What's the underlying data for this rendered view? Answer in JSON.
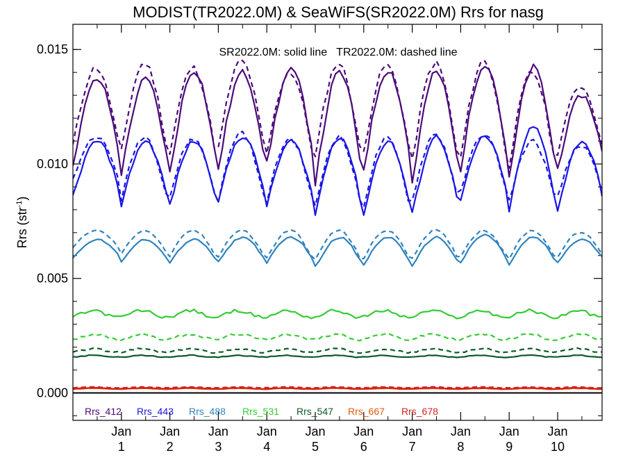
{
  "chart_data": {
    "type": "line",
    "title": "MODIST(TR2022.0M) & SeaWiFS(SR2022.0M)  Rrs for nasg",
    "ylabel": "Rrs (str",
    "ylabel_sup": "-1",
    "ylabel_close": ")",
    "annotation": "SR2022.0M: solid line   TR2022.0M: dashed line",
    "ylim": [
      -0.0012,
      0.0161
    ],
    "xlim": [
      0,
      131
    ],
    "yticks": [
      {
        "value": 0.0,
        "label": "0.000"
      },
      {
        "value": 0.005,
        "label": "0.005"
      },
      {
        "value": 0.01,
        "label": "0.010"
      },
      {
        "value": 0.015,
        "label": "0.015"
      }
    ],
    "xticks": [
      {
        "month": 12,
        "line1": "Jan",
        "line2": "1"
      },
      {
        "month": 24,
        "line1": "Jan",
        "line2": "2"
      },
      {
        "month": 36,
        "line1": "Jan",
        "line2": "3"
      },
      {
        "month": 48,
        "line1": "Jan",
        "line2": "4"
      },
      {
        "month": 60,
        "line1": "Jan",
        "line2": "5"
      },
      {
        "month": 72,
        "line1": "Jan",
        "line2": "6"
      },
      {
        "month": 84,
        "line1": "Jan",
        "line2": "7"
      },
      {
        "month": 96,
        "line1": "Jan",
        "line2": "8"
      },
      {
        "month": 108,
        "line1": "Jan",
        "line2": "9"
      },
      {
        "month": 120,
        "line1": "Jan",
        "line2": "10"
      }
    ],
    "legend_placement": "bottom-left, inside plot",
    "series": [
      {
        "name": "Rrs_412",
        "color": "#4b0a78",
        "solid": {
          "peaks": [
            0.0137,
            0.0137,
            0.0141,
            0.014,
            0.0141,
            0.014,
            0.0141,
            0.014,
            0.0144,
            0.0142,
            0.013
          ],
          "troughs": [
            0.01,
            0.0096,
            0.0096,
            0.0098,
            0.01,
            0.0092,
            0.0098,
            0.0092,
            0.0098,
            0.0093,
            0.0098
          ]
        },
        "dashed": {
          "peaks": [
            0.0142,
            0.0144,
            0.0142,
            0.0145,
            0.014,
            0.0144,
            0.0143,
            0.0144,
            0.0145,
            0.014,
            0.0134
          ],
          "troughs": [
            0.0106,
            0.0103,
            0.0102,
            0.0104,
            0.0102,
            0.01,
            0.0103,
            0.0098,
            0.01,
            0.0097,
            0.0103
          ]
        }
      },
      {
        "name": "Rrs_443",
        "color": "#1a14e6",
        "solid": {
          "peaks": [
            0.011,
            0.011,
            0.011,
            0.0112,
            0.011,
            0.0112,
            0.011,
            0.0112,
            0.0112,
            0.0116,
            0.011
          ],
          "troughs": [
            0.0086,
            0.0082,
            0.0082,
            0.0084,
            0.0082,
            0.0078,
            0.0078,
            0.0078,
            0.0084,
            0.008,
            0.008
          ]
        },
        "dashed": {
          "peaks": [
            0.0112,
            0.0112,
            0.0111,
            0.0114,
            0.0111,
            0.0112,
            0.0111,
            0.0113,
            0.0113,
            0.011,
            0.0108
          ],
          "troughs": [
            0.0092,
            0.0083,
            0.0084,
            0.0082,
            0.0082,
            0.0079,
            0.008,
            0.0082,
            0.0086,
            0.0082,
            0.0084
          ]
        }
      },
      {
        "name": "Rrs_488",
        "color": "#2f83be",
        "solid": {
          "peaks": [
            0.0067,
            0.0067,
            0.0067,
            0.0068,
            0.0068,
            0.0068,
            0.0068,
            0.0068,
            0.0069,
            0.0068,
            0.0067
          ],
          "troughs": [
            0.0059,
            0.0057,
            0.0057,
            0.0057,
            0.0057,
            0.0055,
            0.0056,
            0.0055,
            0.0057,
            0.0056,
            0.0057
          ]
        },
        "dashed": {
          "peaks": [
            0.0071,
            0.0071,
            0.0071,
            0.0071,
            0.0071,
            0.0071,
            0.0071,
            0.0071,
            0.0071,
            0.0071,
            0.007
          ],
          "troughs": [
            0.0063,
            0.006,
            0.0059,
            0.0059,
            0.0058,
            0.0057,
            0.0058,
            0.0058,
            0.0059,
            0.0058,
            0.0059
          ]
        }
      },
      {
        "name": "Rrs_531",
        "color": "#33cc33",
        "solid": {
          "mean": 0.00345,
          "amplitude": 0.00015
        },
        "dashed": {
          "mean": 0.00245,
          "amplitude": 0.00012
        }
      },
      {
        "name": "Rrs_547",
        "color": "#0a5a28",
        "solid": {
          "mean": 0.0016,
          "amplitude": 4e-05
        },
        "dashed": {
          "mean": 0.00185,
          "amplitude": 8e-05
        }
      },
      {
        "name": "Rrs_667",
        "color": "#e05a0a",
        "solid": {
          "mean": 0.00018,
          "amplitude": 2e-05
        },
        "dashed": {
          "mean": 0.00022,
          "amplitude": 2e-05
        }
      },
      {
        "name": "Rrs_678",
        "color": "#d61e1e",
        "solid": {
          "mean": 0.0002,
          "amplitude": 2e-05
        },
        "dashed": {
          "mean": 0.00024,
          "amplitude": 2e-05
        }
      }
    ]
  }
}
